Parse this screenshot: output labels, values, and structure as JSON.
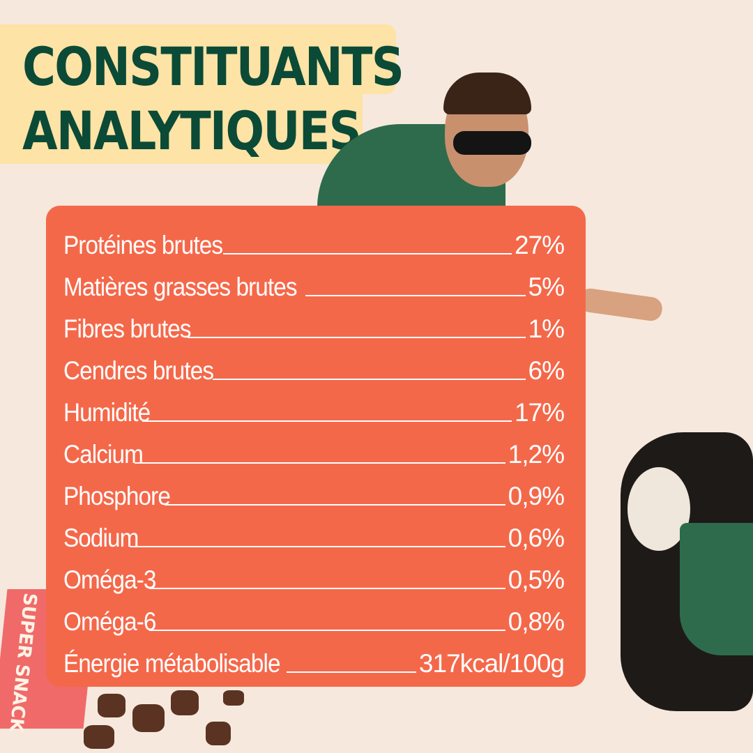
{
  "title": {
    "line1": "CONSTITUANTS",
    "line2": "ANALYTIQUES"
  },
  "colors": {
    "background": "#f6e8dc",
    "title_bg": "#fde3a5",
    "title_text": "#0b4a36",
    "panel": "#f4684a"
  },
  "rows": [
    {
      "label": "Protéines brutes",
      "value": "27%"
    },
    {
      "label": "Matières grasses brutes",
      "value": "5%"
    },
    {
      "label": "Fibres brutes",
      "value": "1%"
    },
    {
      "label": "Cendres brutes",
      "value": "6%"
    },
    {
      "label": "Humidité",
      "value": "17%"
    },
    {
      "label": "Calcium",
      "value": "1,2%"
    },
    {
      "label": "Phosphore",
      "value": "0,9%"
    },
    {
      "label": "Sodium",
      "value": "0,6%"
    },
    {
      "label": "Oméga-3",
      "value": "0,5%"
    },
    {
      "label": "Oméga-6",
      "value": "0,8%"
    },
    {
      "label": "Énergie métabolisable",
      "value": "317kcal/100g"
    }
  ],
  "packaging": {
    "text": "SUPER SNACK"
  }
}
